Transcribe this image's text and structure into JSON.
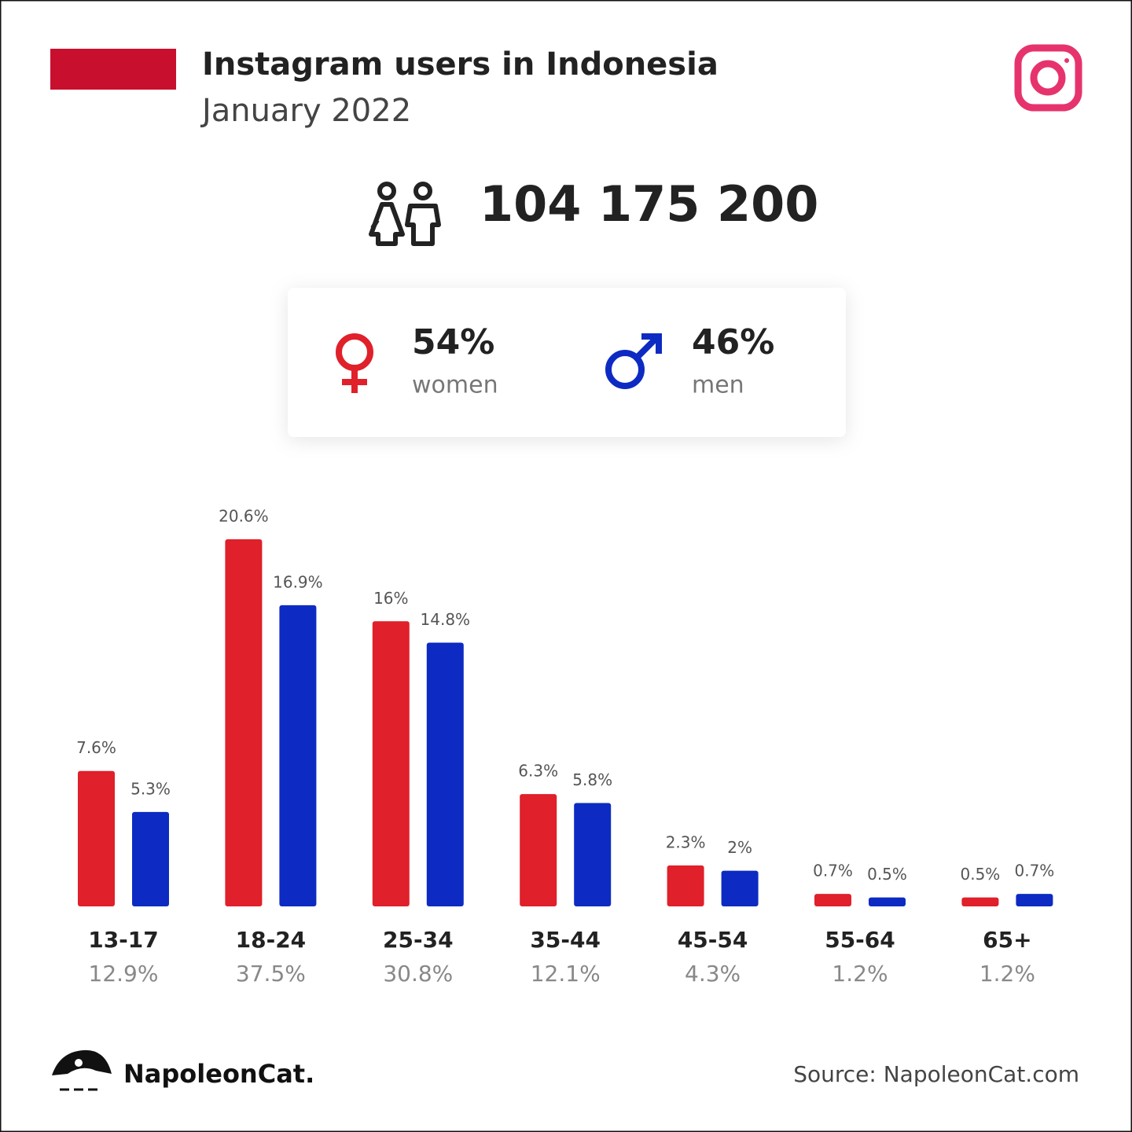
{
  "header": {
    "title": "Instagram users in Indonesia",
    "subtitle": "January 2022"
  },
  "summary": {
    "total": "104 175 200",
    "women_share": "54%",
    "men_share": "46%"
  },
  "chart_data": {
    "type": "bar",
    "categories": [
      "13-17",
      "18-24",
      "25-34",
      "35-44",
      "45-54",
      "55-64",
      "65+"
    ],
    "category_totals": [
      "12.9%",
      "37.5%",
      "30.8%",
      "12.1%",
      "4.3%",
      "1.2%",
      "1.2%"
    ],
    "series": [
      {
        "name": "women",
        "color": "#e0202a",
        "values": [
          7.6,
          20.6,
          16,
          6.3,
          2.3,
          0.7,
          0.5
        ],
        "value_labels": [
          "7.6%",
          "20.6%",
          "16%",
          "6.3%",
          "2.3%",
          "0.7%",
          "0.5%"
        ]
      },
      {
        "name": "men",
        "color": "#0d2bc2",
        "values": [
          5.3,
          16.9,
          14.8,
          5.8,
          2,
          0.5,
          0.7
        ],
        "value_labels": [
          "5.3%",
          "16.9%",
          "14.8%",
          "5.8%",
          "2%",
          "0.5%",
          "0.7%"
        ]
      }
    ]
  },
  "footer": {
    "brand": "NapoleonCat.",
    "source": "Source: NapoleonCat.com"
  }
}
